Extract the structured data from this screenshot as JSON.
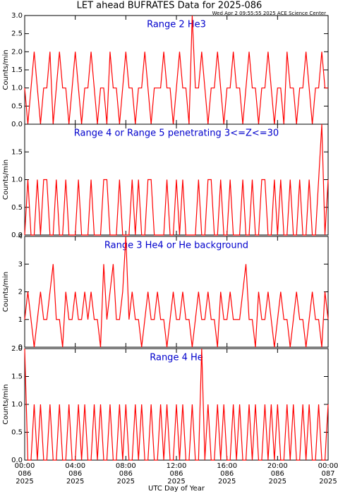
{
  "title": "LET ahead BUFRATES Data for 2025-086",
  "timestamp": "Wed Apr  2 09:55:55 2025 ACE Science Center",
  "xlabel": "UTC Day of Year",
  "chart_data": [
    {
      "type": "line",
      "title": "Range 2 He3",
      "ylabel": "Counts/min",
      "color": "#ff0000",
      "xlim": [
        0,
        24
      ],
      "ylim": [
        0,
        3
      ],
      "yticks": [
        {
          "value": 0,
          "label": "0.0"
        },
        {
          "value": 0.5,
          "label": "0.5"
        },
        {
          "value": 1,
          "label": "1.0"
        },
        {
          "value": 1.5,
          "label": "1.5"
        },
        {
          "value": 2,
          "label": "2.0"
        },
        {
          "value": 2.5,
          "label": "2.5"
        },
        {
          "value": 3,
          "label": "3.0"
        }
      ],
      "x": [
        0,
        0.25,
        0.5,
        0.75,
        1,
        1.25,
        1.5,
        1.75,
        2,
        2.25,
        2.5,
        2.75,
        3,
        3.25,
        3.5,
        3.75,
        4,
        4.25,
        4.5,
        4.75,
        5,
        5.25,
        5.5,
        5.75,
        6,
        6.25,
        6.5,
        6.75,
        7,
        7.25,
        7.5,
        7.75,
        8,
        8.25,
        8.5,
        8.75,
        9,
        9.25,
        9.5,
        9.75,
        10,
        10.25,
        10.5,
        10.75,
        11,
        11.25,
        11.5,
        11.75,
        12,
        12.25,
        12.5,
        12.75,
        13,
        13.25,
        13.5,
        13.75,
        14,
        14.25,
        14.5,
        14.75,
        15,
        15.25,
        15.5,
        15.75,
        16,
        16.25,
        16.5,
        16.75,
        17,
        17.25,
        17.5,
        17.75,
        18,
        18.25,
        18.5,
        18.75,
        19,
        19.25,
        19.5,
        19.75,
        20,
        20.25,
        20.5,
        20.75,
        21,
        21.25,
        21.5,
        21.75,
        22,
        22.25,
        22.5,
        22.75,
        23,
        23.25,
        23.5,
        23.75,
        24
      ],
      "values": [
        1,
        0,
        1,
        2,
        1,
        0,
        1,
        1,
        2,
        0,
        1,
        2,
        1,
        1,
        0,
        1,
        2,
        1,
        0,
        1,
        1,
        2,
        1,
        0,
        1,
        1,
        0,
        2,
        1,
        1,
        0,
        1,
        2,
        1,
        1,
        0,
        1,
        1,
        2,
        1,
        0,
        1,
        1,
        1,
        2,
        1,
        1,
        0,
        1,
        2,
        1,
        1,
        0,
        3,
        1,
        1,
        2,
        1,
        0,
        1,
        1,
        2,
        1,
        0,
        1,
        1,
        2,
        1,
        1,
        0,
        1,
        2,
        1,
        1,
        0,
        1,
        1,
        2,
        1,
        0,
        1,
        1,
        0,
        2,
        1,
        1,
        0,
        1,
        1,
        2,
        1,
        0,
        1,
        1,
        2,
        1,
        1
      ]
    },
    {
      "type": "line",
      "title": "Range 4 or Range 5 penetrating 3<=Z<=30",
      "ylabel": "Counts/min",
      "color": "#ff0000",
      "xlim": [
        0,
        24
      ],
      "ylim": [
        0,
        2
      ],
      "yticks": [
        {
          "value": 0,
          "label": "0.0"
        },
        {
          "value": 0.5,
          "label": "0.5"
        },
        {
          "value": 1,
          "label": "1.0"
        },
        {
          "value": 1.5,
          "label": "1.5"
        }
      ],
      "x": [
        0,
        0.25,
        0.5,
        0.75,
        1,
        1.25,
        1.5,
        1.75,
        2,
        2.25,
        2.5,
        2.75,
        3,
        3.25,
        3.5,
        3.75,
        4,
        4.25,
        4.5,
        4.75,
        5,
        5.25,
        5.5,
        5.75,
        6,
        6.25,
        6.5,
        6.75,
        7,
        7.25,
        7.5,
        7.75,
        8,
        8.25,
        8.5,
        8.75,
        9,
        9.25,
        9.5,
        9.75,
        10,
        10.25,
        10.5,
        10.75,
        11,
        11.25,
        11.5,
        11.75,
        12,
        12.25,
        12.5,
        12.75,
        13,
        13.25,
        13.5,
        13.75,
        14,
        14.25,
        14.5,
        14.75,
        15,
        15.25,
        15.5,
        15.75,
        16,
        16.25,
        16.5,
        16.75,
        17,
        17.25,
        17.5,
        17.75,
        18,
        18.25,
        18.5,
        18.75,
        19,
        19.25,
        19.5,
        19.75,
        20,
        20.25,
        20.5,
        20.75,
        21,
        21.25,
        21.5,
        21.75,
        22,
        22.25,
        22.5,
        22.75,
        23,
        23.25,
        23.5,
        23.75,
        24
      ],
      "values": [
        0,
        1,
        0,
        0,
        1,
        0,
        1,
        1,
        0,
        0,
        1,
        0,
        0,
        1,
        0,
        0,
        0,
        1,
        0,
        0,
        0,
        1,
        0,
        0,
        0,
        1,
        1,
        0,
        0,
        0,
        1,
        0,
        0,
        0,
        1,
        0,
        1,
        0,
        0,
        1,
        1,
        0,
        0,
        0,
        0,
        1,
        0,
        0,
        1,
        0,
        1,
        0,
        0,
        0,
        0,
        1,
        0,
        0,
        1,
        1,
        0,
        0,
        1,
        0,
        0,
        1,
        0,
        0,
        0,
        1,
        0,
        0,
        1,
        0,
        0,
        1,
        1,
        0,
        0,
        1,
        0,
        1,
        0,
        0,
        1,
        0,
        0,
        1,
        0,
        0,
        1,
        0,
        0,
        1,
        2,
        0,
        1
      ]
    },
    {
      "type": "line",
      "title": "Range 3 He4 or He background",
      "ylabel": "Counts/min",
      "color": "#ff0000",
      "xlim": [
        0,
        24
      ],
      "ylim": [
        0,
        4
      ],
      "yticks": [
        0,
        1,
        2,
        3,
        4
      ],
      "x": [
        0,
        0.25,
        0.5,
        0.75,
        1,
        1.25,
        1.5,
        1.75,
        2,
        2.25,
        2.5,
        2.75,
        3,
        3.25,
        3.5,
        3.75,
        4,
        4.25,
        4.5,
        4.75,
        5,
        5.25,
        5.5,
        5.75,
        6,
        6.25,
        6.5,
        6.75,
        7,
        7.25,
        7.5,
        7.75,
        8,
        8.25,
        8.5,
        8.75,
        9,
        9.25,
        9.5,
        9.75,
        10,
        10.25,
        10.5,
        10.75,
        11,
        11.25,
        11.5,
        11.75,
        12,
        12.25,
        12.5,
        12.75,
        13,
        13.25,
        13.5,
        13.75,
        14,
        14.25,
        14.5,
        14.75,
        15,
        15.25,
        15.5,
        15.75,
        16,
        16.25,
        16.5,
        16.75,
        17,
        17.25,
        17.5,
        17.75,
        18,
        18.25,
        18.5,
        18.75,
        19,
        19.25,
        19.5,
        19.75,
        20,
        20.25,
        20.5,
        20.75,
        21,
        21.25,
        21.5,
        21.75,
        22,
        22.25,
        22.5,
        22.75,
        23,
        23.25,
        23.5,
        23.75,
        24
      ],
      "values": [
        1,
        2,
        1,
        0,
        1,
        2,
        1,
        1,
        2,
        3,
        1,
        1,
        0,
        2,
        1,
        1,
        2,
        1,
        1,
        2,
        1,
        2,
        1,
        1,
        0,
        3,
        1,
        2,
        3,
        1,
        1,
        2,
        4,
        1,
        2,
        1,
        1,
        0,
        1,
        2,
        1,
        1,
        2,
        1,
        1,
        0,
        1,
        2,
        1,
        1,
        2,
        1,
        1,
        0,
        1,
        2,
        1,
        1,
        2,
        1,
        1,
        0,
        2,
        1,
        1,
        2,
        1,
        1,
        1,
        2,
        3,
        1,
        1,
        0,
        2,
        1,
        1,
        2,
        1,
        0,
        1,
        2,
        1,
        1,
        0,
        1,
        2,
        1,
        1,
        0,
        1,
        2,
        1,
        1,
        0,
        2,
        1
      ]
    },
    {
      "type": "line",
      "title": "Range 4 He",
      "ylabel": "Counts/min",
      "color": "#ff0000",
      "xlim": [
        0,
        24
      ],
      "ylim": [
        0,
        2
      ],
      "yticks": [
        {
          "value": 0,
          "label": "0.0"
        },
        {
          "value": 0.5,
          "label": "0.5"
        },
        {
          "value": 1,
          "label": "1.0"
        },
        {
          "value": 1.5,
          "label": "1.5"
        },
        {
          "value": 2,
          "label": "2.0"
        }
      ],
      "xticks": [
        {
          "value": 0,
          "label": "00:00\n086\n2025"
        },
        {
          "value": 4,
          "label": "04:00\n086\n2025"
        },
        {
          "value": 8,
          "label": "08:00\n086\n2025"
        },
        {
          "value": 12,
          "label": "12:00\n086\n2025"
        },
        {
          "value": 16,
          "label": "16:00\n086\n2025"
        },
        {
          "value": 20,
          "label": "20:00\n086\n2025"
        },
        {
          "value": 24,
          "label": "00:00\n087\n2025"
        }
      ],
      "x": [
        0,
        0.25,
        0.5,
        0.75,
        1,
        1.25,
        1.5,
        1.75,
        2,
        2.25,
        2.5,
        2.75,
        3,
        3.25,
        3.5,
        3.75,
        4,
        4.25,
        4.5,
        4.75,
        5,
        5.25,
        5.5,
        5.75,
        6,
        6.25,
        6.5,
        6.75,
        7,
        7.25,
        7.5,
        7.75,
        8,
        8.25,
        8.5,
        8.75,
        9,
        9.25,
        9.5,
        9.75,
        10,
        10.25,
        10.5,
        10.75,
        11,
        11.25,
        11.5,
        11.75,
        12,
        12.25,
        12.5,
        12.75,
        13,
        13.25,
        13.5,
        13.75,
        14,
        14.25,
        14.5,
        14.75,
        15,
        15.25,
        15.5,
        15.75,
        16,
        16.25,
        16.5,
        16.75,
        17,
        17.25,
        17.5,
        17.75,
        18,
        18.25,
        18.5,
        18.75,
        19,
        19.25,
        19.5,
        19.75,
        20,
        20.25,
        20.5,
        20.75,
        21,
        21.25,
        21.5,
        21.75,
        22,
        22.25,
        22.5,
        22.75,
        23,
        23.25,
        23.5,
        23.75,
        24
      ],
      "values": [
        2,
        0,
        0,
        1,
        0,
        1,
        0,
        0,
        1,
        0,
        0,
        1,
        0,
        0,
        1,
        0,
        0,
        1,
        0,
        1,
        0,
        0,
        1,
        0,
        1,
        0,
        0,
        1,
        0,
        0,
        1,
        0,
        1,
        0,
        0,
        1,
        0,
        1,
        0,
        0,
        1,
        0,
        0,
        1,
        0,
        1,
        0,
        0,
        1,
        0,
        1,
        0,
        0,
        1,
        0,
        0,
        2,
        0,
        1,
        0,
        0,
        1,
        0,
        1,
        0,
        0,
        1,
        0,
        1,
        0,
        0,
        1,
        0,
        1,
        0,
        0,
        1,
        0,
        1,
        0,
        1,
        0,
        0,
        1,
        0,
        1,
        0,
        0,
        1,
        0,
        1,
        0,
        0,
        1,
        0,
        0,
        1
      ]
    }
  ]
}
